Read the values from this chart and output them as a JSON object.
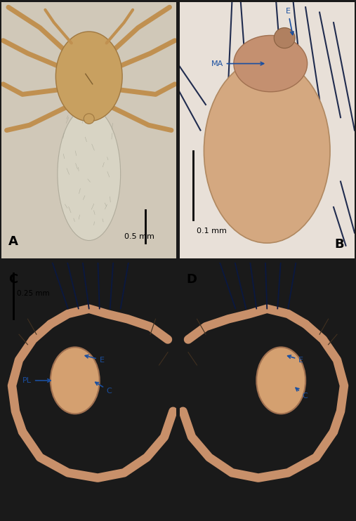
{
  "figure_width": 5.07,
  "figure_height": 7.42,
  "dpi": 100,
  "bg_color": "#1a1a1a",
  "panel_A": {
    "bg": "#d8cfc0",
    "ceph_color": "#c8a060",
    "ceph_edge": "#a07840",
    "abd_color": "#d8cfc0",
    "abd_edge": "#b0a890",
    "leg_color": "#c09050",
    "label": "A",
    "scale_text": "0.5 mm"
  },
  "panel_B": {
    "bg": "#e8e0d8",
    "bulb_color": "#d4a880",
    "bulb_edge": "#b08860",
    "top_color": "#c09878",
    "label": "B",
    "scale_text": "0.1 mm",
    "ann_color": "#1a4fa0"
  },
  "panel_C": {
    "bg": "#aec8d0",
    "bulb_color": "#d4a070",
    "leg_color": "#c8906a",
    "label": "C",
    "scale_text": "0.25 mm",
    "ann_color": "#1a4fa0"
  },
  "panel_D": {
    "bg": "#aec8d0",
    "bulb_color": "#d4a070",
    "leg_color": "#c8906a",
    "label": "D",
    "ann_color": "#1a4fa0"
  },
  "blue_dark": "#0a1840",
  "blue_ann": "#1a4fa0"
}
